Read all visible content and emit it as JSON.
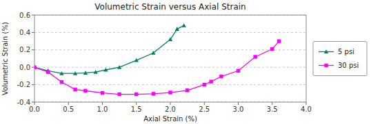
{
  "chart_data": {
    "type": "line",
    "title": "Volumetric Strain versus Axial Strain",
    "x_label": "Axial Strain (%)",
    "y_label": "Volumetric Strain (%)",
    "xlim": [
      0,
      4.0
    ],
    "ylim": [
      -0.4,
      0.6
    ],
    "xticks": [
      {
        "value": 0.0,
        "label": "0.0"
      },
      0.5,
      {
        "value": 1.0,
        "label": "1.0"
      },
      1.5,
      {
        "value": 2.0,
        "label": "2.0"
      },
      2.5,
      {
        "value": 3.0,
        "label": "3.0"
      },
      3.5,
      {
        "value": 4.0,
        "label": "4.0"
      }
    ],
    "yticks": [
      -0.4,
      -0.2,
      {
        "value": 0.0,
        "label": "0.0"
      },
      0.2,
      0.4,
      0.6
    ],
    "grid": "y",
    "legend": "right",
    "series": [
      {
        "name": "5 psi",
        "color": "#008060",
        "marker": "triangle",
        "x": [
          0.0,
          0.2,
          0.4,
          0.6,
          0.75,
          0.9,
          1.05,
          1.25,
          1.5,
          1.75,
          2.0,
          2.1,
          2.2
        ],
        "values": [
          0.0,
          -0.04,
          -0.07,
          -0.07,
          -0.065,
          -0.055,
          -0.03,
          0.0,
          0.08,
          0.165,
          0.32,
          0.44,
          0.48
        ]
      },
      {
        "name": "30 psi",
        "color": "#ff00ff",
        "marker": "square",
        "x": [
          0.0,
          0.2,
          0.4,
          0.6,
          0.75,
          1.0,
          1.25,
          1.5,
          1.75,
          2.0,
          2.25,
          2.5,
          2.6,
          2.75,
          3.0,
          3.25,
          3.5,
          3.6
        ],
        "values": [
          0.0,
          -0.055,
          -0.17,
          -0.255,
          -0.27,
          -0.295,
          -0.31,
          -0.31,
          -0.305,
          -0.29,
          -0.265,
          -0.2,
          -0.165,
          -0.105,
          -0.04,
          0.12,
          0.21,
          0.3
        ]
      }
    ]
  }
}
